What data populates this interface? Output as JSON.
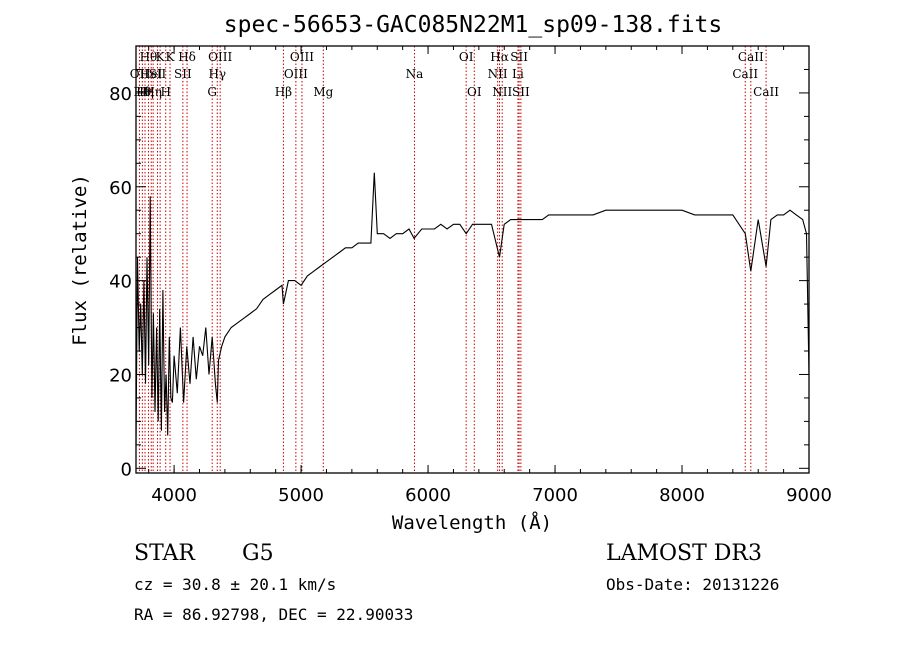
{
  "chart_data": {
    "type": "line",
    "title": "spec-56653-GAC085N22M1_sp09-138.fits",
    "xlabel": "Wavelength (Å)",
    "ylabel": "Flux (relative)",
    "xlim": [
      3700,
      9000
    ],
    "ylim": [
      -1,
      90
    ],
    "xticks": [
      4000,
      5000,
      6000,
      7000,
      8000,
      9000
    ],
    "yticks": [
      0,
      20,
      40,
      60,
      80
    ],
    "series": [
      {
        "name": "spectrum",
        "x": [
          3700,
          3712,
          3725,
          3737,
          3750,
          3762,
          3775,
          3787,
          3800,
          3812,
          3825,
          3837,
          3850,
          3862,
          3875,
          3887,
          3900,
          3912,
          3925,
          3937,
          3950,
          3962,
          3975,
          3987,
          4000,
          4025,
          4050,
          4075,
          4100,
          4125,
          4150,
          4175,
          4200,
          4225,
          4250,
          4275,
          4300,
          4325,
          4340,
          4350,
          4375,
          4400,
          4450,
          4500,
          4550,
          4600,
          4650,
          4700,
          4750,
          4800,
          4850,
          4861,
          4900,
          4950,
          5000,
          5050,
          5100,
          5150,
          5200,
          5250,
          5300,
          5350,
          5400,
          5450,
          5500,
          5550,
          5577,
          5600,
          5650,
          5700,
          5750,
          5800,
          5850,
          5890,
          5950,
          6000,
          6050,
          6100,
          6150,
          6200,
          6250,
          6300,
          6350,
          6400,
          6450,
          6500,
          6563,
          6600,
          6650,
          6700,
          6750,
          6800,
          6850,
          6900,
          6950,
          7000,
          7100,
          7200,
          7300,
          7400,
          7500,
          7600,
          7700,
          7800,
          7900,
          8000,
          8100,
          8200,
          8300,
          8400,
          8498,
          8542,
          8600,
          8662,
          8700,
          8750,
          8800,
          8850,
          8900,
          8950,
          8980,
          9000
        ],
        "y": [
          5,
          45,
          25,
          35,
          20,
          40,
          18,
          45,
          22,
          58,
          15,
          33,
          12,
          30,
          10,
          34,
          8,
          38,
          12,
          20,
          7,
          28,
          15,
          14,
          24,
          16,
          30,
          14,
          26,
          18,
          28,
          19,
          26,
          24,
          30,
          20,
          28,
          18,
          14,
          23,
          26,
          28,
          30,
          31,
          32,
          33,
          34,
          36,
          37,
          38,
          39,
          35,
          40,
          40,
          39,
          41,
          42,
          43,
          44,
          45,
          46,
          47,
          47,
          48,
          48,
          48,
          63,
          50,
          50,
          49,
          50,
          50,
          51,
          49,
          51,
          51,
          51,
          52,
          51,
          52,
          52,
          50,
          52,
          52,
          52,
          52,
          45,
          52,
          53,
          53,
          53,
          53,
          53,
          53,
          54,
          54,
          54,
          54,
          54,
          55,
          55,
          55,
          55,
          55,
          55,
          55,
          54,
          54,
          54,
          54,
          50,
          42,
          53,
          43,
          53,
          54,
          54,
          55,
          54,
          53,
          50,
          20
        ]
      }
    ],
    "line_markers": [
      {
        "x": 3727,
        "label": "OII",
        "row": 2
      },
      {
        "x": 3750,
        "label": "Hθ",
        "row": 3
      },
      {
        "x": 3771,
        "label": "Hη",
        "row": 3
      },
      {
        "x": 3798,
        "label": "Hθ",
        "row": 1
      },
      {
        "x": 3820,
        "label": "HeI",
        "row": 2
      },
      {
        "x": 3835,
        "label": "Hη",
        "row": 3
      },
      {
        "x": 3869,
        "label": "SII",
        "row": 2
      },
      {
        "x": 3890,
        "label": "K",
        "row": 1
      },
      {
        "x": 3934,
        "label": "H",
        "row": 3
      },
      {
        "x": 3968,
        "label": "K",
        "row": 1
      },
      {
        "x": 4069,
        "label": "SII",
        "row": 2
      },
      {
        "x": 4102,
        "label": "Hδ",
        "row": 1
      },
      {
        "x": 4300,
        "label": "G",
        "row": 3
      },
      {
        "x": 4340,
        "label": "Hγ",
        "row": 2
      },
      {
        "x": 4363,
        "label": "OIII",
        "row": 1
      },
      {
        "x": 4861,
        "label": "Hβ",
        "row": 3
      },
      {
        "x": 4959,
        "label": "OIII",
        "row": 2
      },
      {
        "x": 5007,
        "label": "OIII",
        "row": 1
      },
      {
        "x": 5175,
        "label": "Mg",
        "row": 3
      },
      {
        "x": 5893,
        "label": "Na",
        "row": 2
      },
      {
        "x": 6300,
        "label": "OI",
        "row": 1
      },
      {
        "x": 6364,
        "label": "OI",
        "row": 3
      },
      {
        "x": 6548,
        "label": "NII",
        "row": 2
      },
      {
        "x": 6563,
        "label": "Hα",
        "row": 1
      },
      {
        "x": 6584,
        "label": "NII",
        "row": 3
      },
      {
        "x": 6708,
        "label": "Li",
        "row": 2
      },
      {
        "x": 6717,
        "label": "SII",
        "row": 1
      },
      {
        "x": 6731,
        "label": "SII",
        "row": 3
      },
      {
        "x": 8498,
        "label": "CaII",
        "row": 2
      },
      {
        "x": 8542,
        "label": "CaII",
        "row": 1
      },
      {
        "x": 8662,
        "label": "CaII",
        "row": 3
      }
    ]
  },
  "info": {
    "object_class": "STAR",
    "subclass": "G5",
    "survey": "LAMOST DR3",
    "cz": "cz = 30.8 ± 20.1 km/s",
    "obs_date": "Obs-Date: 20131226",
    "radec": "RA =  86.92798, DEC =  22.90033"
  },
  "colors": {
    "spectrum": "#000000",
    "markers": "#cc0000",
    "axes": "#000000"
  }
}
